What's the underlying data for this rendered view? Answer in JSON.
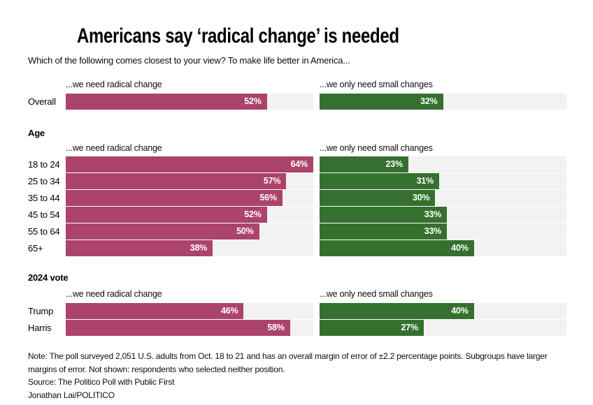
{
  "title": "Americans say ‘radical change’ is needed",
  "subtitle": "Which of the following comes closest to your view? To make life better in America...",
  "columns": {
    "left_header": "...we need radical change",
    "right_header": "...we only need small changes"
  },
  "colors": {
    "radical_bar": "#ab436a",
    "small_bar": "#35702f",
    "bar_track": "#f2f2f2"
  },
  "chart_data": {
    "type": "bar",
    "scale_max": 64,
    "xlim": [
      0,
      64
    ],
    "grid": false,
    "legend_position": "column-headers",
    "categories": [
      "Overall",
      "18 to 24",
      "25 to 34",
      "35 to 44",
      "45 to 54",
      "55 to 64",
      "65+",
      "Trump",
      "Harris"
    ],
    "series": [
      {
        "name": "...we need radical change",
        "values": [
          52,
          64,
          57,
          56,
          52,
          50,
          38,
          46,
          58
        ]
      },
      {
        "name": "...we only need small changes",
        "values": [
          32,
          23,
          31,
          30,
          33,
          33,
          40,
          40,
          27
        ]
      }
    ],
    "groups": [
      {
        "header": "",
        "rows": [
          {
            "label": "Overall",
            "radical": 52,
            "small": 32
          }
        ]
      },
      {
        "header": "Age",
        "rows": [
          {
            "label": "18 to 24",
            "radical": 64,
            "small": 23
          },
          {
            "label": "25 to 34",
            "radical": 57,
            "small": 31
          },
          {
            "label": "35 to 44",
            "radical": 56,
            "small": 30
          },
          {
            "label": "45 to 54",
            "radical": 52,
            "small": 33
          },
          {
            "label": "55 to 64",
            "radical": 50,
            "small": 33
          },
          {
            "label": "65+",
            "radical": 38,
            "small": 40
          }
        ]
      },
      {
        "header": "2024 vote",
        "rows": [
          {
            "label": "Trump",
            "radical": 46,
            "small": 40
          },
          {
            "label": "Harris",
            "radical": 58,
            "small": 27
          }
        ]
      }
    ]
  },
  "footer": {
    "note": "Note: The poll surveyed 2,051 U.S. adults from Oct. 18 to 21 and has an overall margin of error of ±2.2 percentage points. Subgroups have larger margins of error. Not shown: respondents who selected neither position.",
    "source": "Source: The Politico Poll with Public First",
    "byline": "Jonathan Lai/POLITICO"
  }
}
